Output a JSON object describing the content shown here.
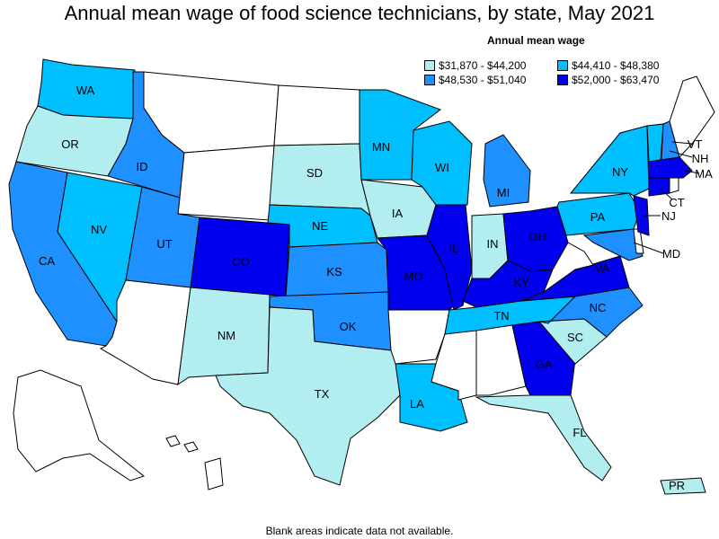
{
  "title": "Annual mean wage of food science technicians, by state, May 2021",
  "legend": {
    "title": "Annual mean wage",
    "items": [
      {
        "label": "$31,870 - $44,200",
        "color": "#b2eef0"
      },
      {
        "label": "$44,410 - $48,380",
        "color": "#00bfff"
      },
      {
        "label": "$48,530 - $51,040",
        "color": "#1e90ff"
      },
      {
        "label": "$52,000 - $63,470",
        "color": "#0000ee"
      }
    ]
  },
  "footnote": "Blank areas indicate data not available.",
  "colors": {
    "tier1": "#b2eef0",
    "tier2": "#00bfff",
    "tier3": "#1e90ff",
    "tier4": "#0000ee",
    "blank": "#ffffff"
  },
  "states": [
    {
      "abbr": "WA",
      "tier": 2
    },
    {
      "abbr": "OR",
      "tier": 1
    },
    {
      "abbr": "CA",
      "tier": 3
    },
    {
      "abbr": "ID",
      "tier": 3
    },
    {
      "abbr": "NV",
      "tier": 2
    },
    {
      "abbr": "UT",
      "tier": 3
    },
    {
      "abbr": "CO",
      "tier": 4
    },
    {
      "abbr": "NM",
      "tier": 1
    },
    {
      "abbr": "TX",
      "tier": 1
    },
    {
      "abbr": "SD",
      "tier": 1
    },
    {
      "abbr": "NE",
      "tier": 2
    },
    {
      "abbr": "KS",
      "tier": 3
    },
    {
      "abbr": "OK",
      "tier": 3
    },
    {
      "abbr": "MN",
      "tier": 2
    },
    {
      "abbr": "IA",
      "tier": 1
    },
    {
      "abbr": "MO",
      "tier": 4
    },
    {
      "abbr": "LA",
      "tier": 2
    },
    {
      "abbr": "WI",
      "tier": 2
    },
    {
      "abbr": "IL",
      "tier": 4
    },
    {
      "abbr": "MI",
      "tier": 3
    },
    {
      "abbr": "IN",
      "tier": 1
    },
    {
      "abbr": "OH",
      "tier": 4
    },
    {
      "abbr": "KY",
      "tier": 4
    },
    {
      "abbr": "TN",
      "tier": 2
    },
    {
      "abbr": "GA",
      "tier": 4
    },
    {
      "abbr": "FL",
      "tier": 1
    },
    {
      "abbr": "SC",
      "tier": 1
    },
    {
      "abbr": "NC",
      "tier": 3
    },
    {
      "abbr": "VA",
      "tier": 4
    },
    {
      "abbr": "PA",
      "tier": 2
    },
    {
      "abbr": "NY",
      "tier": 2
    },
    {
      "abbr": "VT",
      "tier": 2
    },
    {
      "abbr": "NH",
      "tier": 3
    },
    {
      "abbr": "MA",
      "tier": 4
    },
    {
      "abbr": "CT",
      "tier": 4
    },
    {
      "abbr": "NJ",
      "tier": 4
    },
    {
      "abbr": "MD",
      "tier": 3
    },
    {
      "abbr": "PR",
      "tier": 1
    },
    {
      "abbr": "MT",
      "tier": 0
    },
    {
      "abbr": "WY",
      "tier": 0
    },
    {
      "abbr": "ND",
      "tier": 0
    },
    {
      "abbr": "AZ",
      "tier": 0
    },
    {
      "abbr": "AR",
      "tier": 0
    },
    {
      "abbr": "MS",
      "tier": 0
    },
    {
      "abbr": "AL",
      "tier": 0
    },
    {
      "abbr": "WV",
      "tier": 0
    },
    {
      "abbr": "ME",
      "tier": 0
    },
    {
      "abbr": "AK",
      "tier": 0
    },
    {
      "abbr": "HI",
      "tier": 0
    },
    {
      "abbr": "DE",
      "tier": 0
    },
    {
      "abbr": "RI",
      "tier": 0
    }
  ],
  "labels": {
    "WA": "WA",
    "OR": "OR",
    "CA": "CA",
    "ID": "ID",
    "NV": "NV",
    "UT": "UT",
    "CO": "CO",
    "NM": "NM",
    "TX": "TX",
    "SD": "SD",
    "NE": "NE",
    "KS": "KS",
    "OK": "OK",
    "MN": "MN",
    "IA": "IA",
    "MO": "MO",
    "LA": "LA",
    "WI": "WI",
    "IL": "IL",
    "MI": "MI",
    "IN": "IN",
    "OH": "OH",
    "KY": "KY",
    "TN": "TN",
    "GA": "GA",
    "FL": "FL",
    "SC": "SC",
    "NC": "NC",
    "VA": "VA",
    "PA": "PA",
    "NY": "NY",
    "VT": "VT",
    "NH": "NH",
    "MA": "MA",
    "CT": "CT",
    "NJ": "NJ",
    "MD": "MD",
    "PR": "PR"
  }
}
